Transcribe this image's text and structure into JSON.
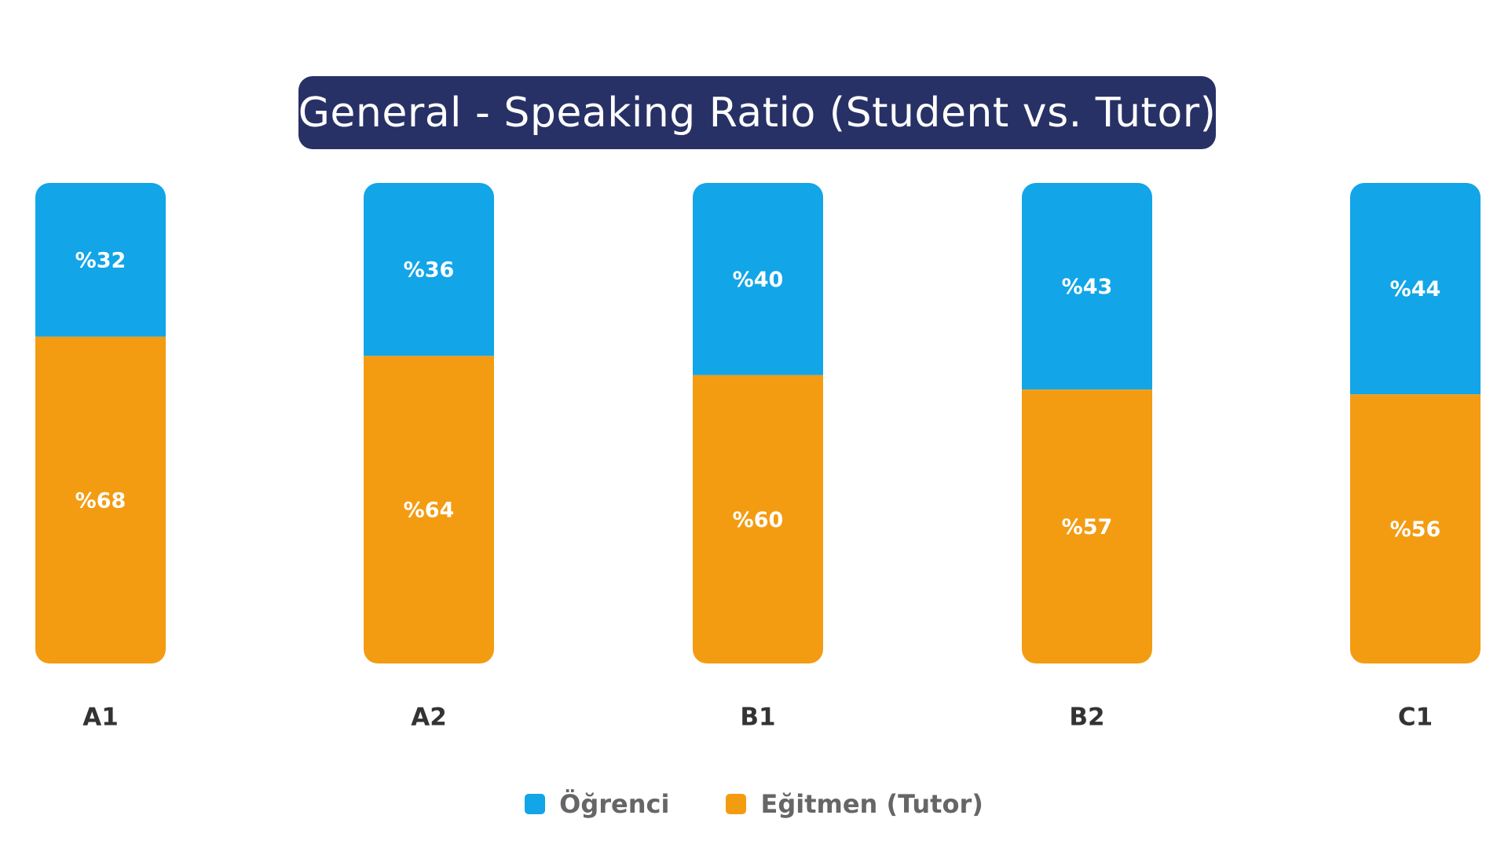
{
  "chart_data": {
    "type": "bar",
    "stacked": true,
    "title": "General - Speaking Ratio (Student vs. Tutor)",
    "categories": [
      "A1",
      "A2",
      "B1",
      "B2",
      "C1"
    ],
    "series": [
      {
        "name": "Öğrenci",
        "values": [
          32,
          36,
          40,
          43,
          44
        ],
        "labels": [
          "%32",
          "%36",
          "%40",
          "%43",
          "%44"
        ],
        "color": "#12A5E8",
        "position": "top"
      },
      {
        "name": "Eğitmen (Tutor)",
        "values": [
          68,
          64,
          60,
          57,
          56
        ],
        "labels": [
          "%68",
          "%64",
          "%60",
          "%57",
          "%56"
        ],
        "color": "#F39C12",
        "position": "bottom"
      }
    ],
    "ylim": [
      0,
      100
    ],
    "grid": false,
    "legend_position": "bottom-center"
  }
}
